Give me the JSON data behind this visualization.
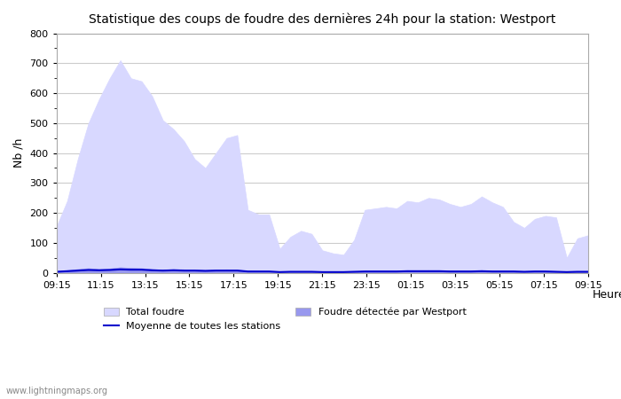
{
  "title": "Statistique des coups de foudre des dernières 24h pour la station: Westport",
  "xlabel": "Heure",
  "ylabel": "Nb /h",
  "ylim": [
    0,
    800
  ],
  "yticks": [
    0,
    100,
    200,
    300,
    400,
    500,
    600,
    700,
    800
  ],
  "x_labels": [
    "09:15",
    "11:15",
    "13:15",
    "15:15",
    "17:15",
    "19:15",
    "21:15",
    "23:15",
    "01:15",
    "03:15",
    "05:15",
    "07:15",
    "09:15"
  ],
  "watermark": "www.lightningmaps.org",
  "total_foudre_color": "#d8d8ff",
  "westport_color": "#9898ee",
  "moyenne_color": "#0000cc",
  "background_color": "#ffffff",
  "grid_color": "#cccccc",
  "total_foudre": [
    155,
    240,
    380,
    500,
    580,
    650,
    710,
    650,
    640,
    590,
    510,
    480,
    440,
    380,
    350,
    400,
    450,
    460,
    210,
    195,
    195,
    80,
    120,
    140,
    130,
    75,
    65,
    60,
    110,
    210,
    215,
    220,
    215,
    240,
    235,
    250,
    245,
    230,
    220,
    230,
    255,
    235,
    220,
    170,
    150,
    180,
    190,
    185,
    50,
    115,
    125
  ],
  "westport_foudre": [
    5,
    8,
    12,
    15,
    12,
    14,
    18,
    16,
    15,
    12,
    10,
    12,
    11,
    10,
    9,
    10,
    11,
    10,
    6,
    5,
    5,
    2,
    4,
    5,
    4,
    3,
    2,
    2,
    4,
    6,
    7,
    7,
    7,
    8,
    7,
    8,
    7,
    7,
    7,
    7,
    8,
    7,
    7,
    6,
    5,
    6,
    6,
    5,
    2,
    4,
    4
  ],
  "moyenne": [
    3,
    5,
    7,
    9,
    8,
    9,
    11,
    10,
    10,
    8,
    7,
    8,
    7,
    7,
    6,
    7,
    7,
    7,
    4,
    4,
    4,
    2,
    3,
    3,
    3,
    2,
    2,
    2,
    3,
    4,
    4,
    4,
    4,
    5,
    5,
    5,
    5,
    4,
    4,
    4,
    5,
    4,
    4,
    4,
    3,
    4,
    4,
    3,
    2,
    3,
    3
  ]
}
